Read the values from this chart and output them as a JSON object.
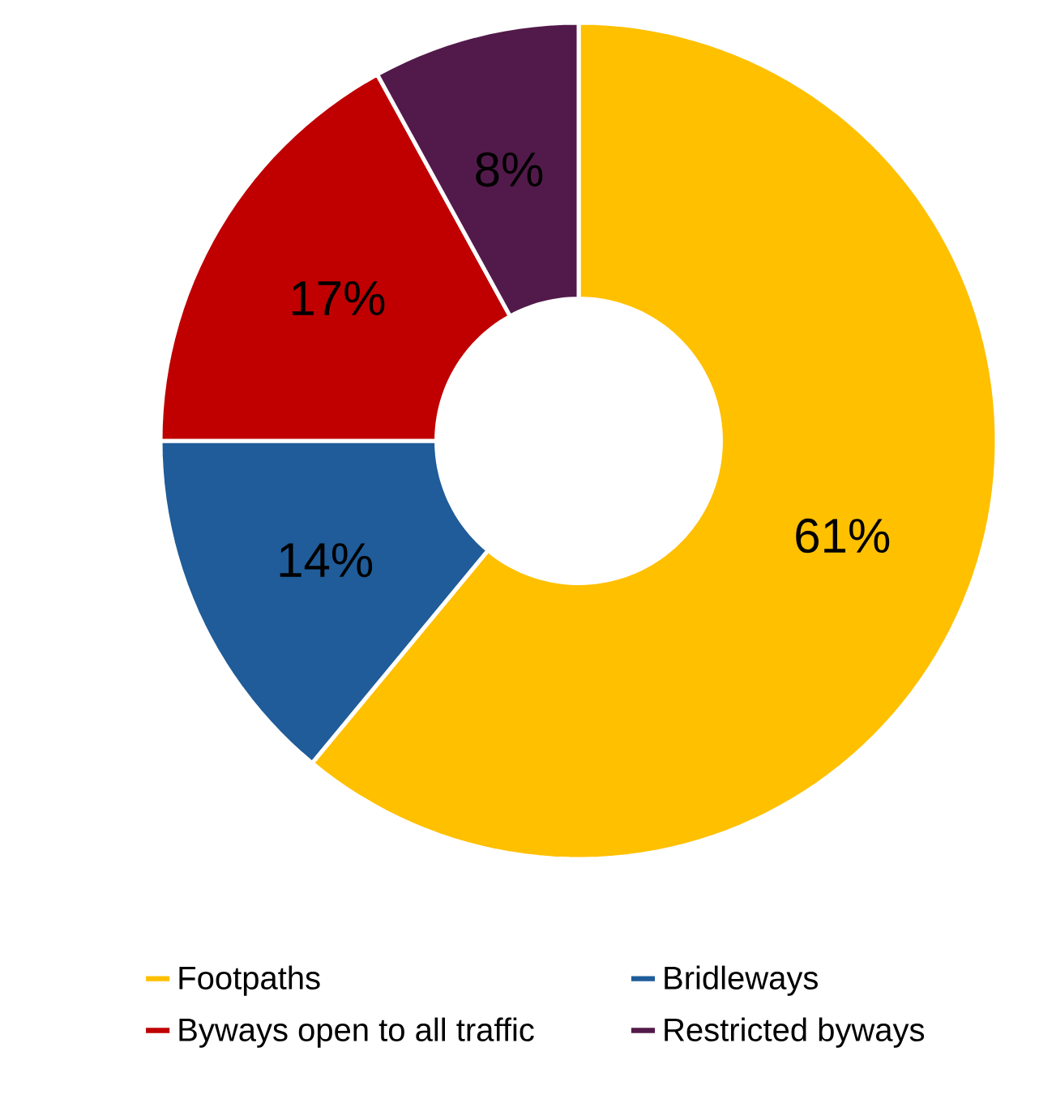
{
  "chart_data": {
    "type": "donut",
    "categories": [
      "Footpaths",
      "Bridleways",
      "Byways open to all traffic",
      "Restricted byways"
    ],
    "values": [
      61,
      14,
      17,
      8
    ],
    "colors": [
      "#ffc000",
      "#1f5c99",
      "#c00000",
      "#521a4a"
    ],
    "value_labels": [
      "61%",
      "14%",
      "17%",
      "8%"
    ],
    "legend": "bottom"
  }
}
